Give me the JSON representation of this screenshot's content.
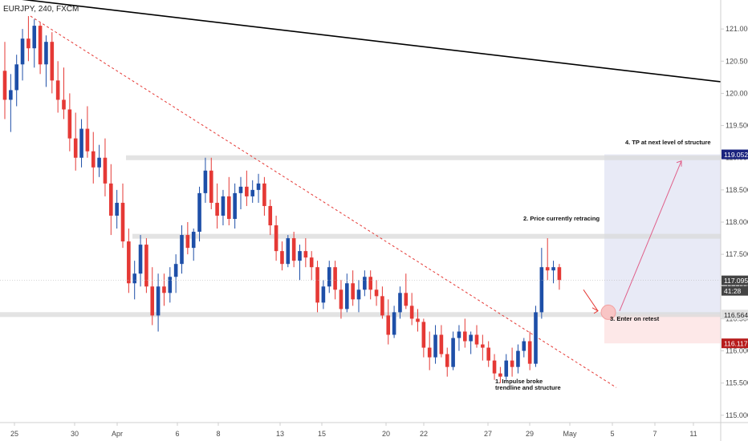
{
  "header": {
    "symbol": "EURJPY, 240, FXCM"
  },
  "chart_data": {
    "type": "candlestick",
    "title": "EURJPY, 240, FXCM",
    "ylim": [
      114.6,
      121.45
    ],
    "y_ticks": [
      "121.000",
      "120.500",
      "120.000",
      "119.500",
      "119.000",
      "118.500",
      "118.000",
      "117.500",
      "117.000",
      "116.500",
      "116.000",
      "115.500",
      "115.000"
    ],
    "x_ticks": [
      "25",
      "30",
      "Apr",
      "6",
      "8",
      "13",
      "15",
      "20",
      "22",
      "27",
      "29",
      "May",
      "5",
      "7",
      "11"
    ],
    "grid": false,
    "price_tags": [
      {
        "value": "119.052",
        "color": "#1a237e"
      },
      {
        "value": "117.095",
        "color": "#444444"
      },
      {
        "value": "41:28",
        "color": "#444444"
      },
      {
        "value": "116.564",
        "color": "#e0e0e0"
      },
      {
        "value": "116.117",
        "color": "#b71c1c"
      }
    ],
    "annotations": [
      "1. Impulse broke",
      "trendline and structure",
      "2. Price currently retracing",
      "3. Enter on retest",
      "4. TP at next level of structure"
    ],
    "zones": [
      {
        "name": "target",
        "from": 116.564,
        "to": 119.052,
        "color": "#e8eaf6"
      },
      {
        "name": "stop",
        "from": 116.117,
        "to": 116.564,
        "color": "#fde8e8"
      }
    ],
    "levels": [
      119.0,
      117.78,
      116.564
    ],
    "colors": {
      "bull": "#1e4fa8",
      "bear": "#e53935",
      "trend": "#000000",
      "dashed": "#e53935"
    },
    "candles": [
      {
        "o": 120.35,
        "h": 120.8,
        "l": 119.6,
        "c": 119.9
      },
      {
        "o": 119.9,
        "h": 120.3,
        "l": 119.4,
        "c": 120.05
      },
      {
        "o": 120.05,
        "h": 120.6,
        "l": 119.8,
        "c": 120.45
      },
      {
        "o": 120.45,
        "h": 121.0,
        "l": 120.2,
        "c": 120.85
      },
      {
        "o": 120.85,
        "h": 121.2,
        "l": 120.5,
        "c": 120.7
      },
      {
        "o": 120.7,
        "h": 121.15,
        "l": 120.4,
        "c": 121.05
      },
      {
        "o": 121.05,
        "h": 121.1,
        "l": 120.3,
        "c": 120.45
      },
      {
        "o": 120.45,
        "h": 120.9,
        "l": 120.1,
        "c": 120.8
      },
      {
        "o": 120.8,
        "h": 120.95,
        "l": 120.0,
        "c": 120.2
      },
      {
        "o": 120.2,
        "h": 120.5,
        "l": 119.7,
        "c": 119.9
      },
      {
        "o": 119.9,
        "h": 120.4,
        "l": 119.6,
        "c": 119.75
      },
      {
        "o": 119.75,
        "h": 120.0,
        "l": 119.1,
        "c": 119.3
      },
      {
        "o": 119.3,
        "h": 119.7,
        "l": 118.8,
        "c": 119.0
      },
      {
        "o": 119.0,
        "h": 119.6,
        "l": 118.85,
        "c": 119.45
      },
      {
        "o": 119.45,
        "h": 119.8,
        "l": 119.0,
        "c": 119.1
      },
      {
        "o": 119.1,
        "h": 119.4,
        "l": 118.6,
        "c": 118.85
      },
      {
        "o": 118.85,
        "h": 119.2,
        "l": 118.7,
        "c": 119.0
      },
      {
        "o": 119.0,
        "h": 119.3,
        "l": 118.4,
        "c": 118.6
      },
      {
        "o": 118.6,
        "h": 118.9,
        "l": 117.8,
        "c": 118.1
      },
      {
        "o": 118.1,
        "h": 118.5,
        "l": 117.9,
        "c": 118.3
      },
      {
        "o": 118.3,
        "h": 118.6,
        "l": 117.6,
        "c": 117.7
      },
      {
        "o": 117.7,
        "h": 117.9,
        "l": 116.9,
        "c": 117.05
      },
      {
        "o": 117.05,
        "h": 117.4,
        "l": 116.8,
        "c": 117.2
      },
      {
        "o": 117.2,
        "h": 117.8,
        "l": 117.0,
        "c": 117.65
      },
      {
        "o": 117.65,
        "h": 117.75,
        "l": 116.9,
        "c": 117.0
      },
      {
        "o": 117.0,
        "h": 117.3,
        "l": 116.4,
        "c": 116.55
      },
      {
        "o": 116.55,
        "h": 117.2,
        "l": 116.3,
        "c": 117.0
      },
      {
        "o": 117.0,
        "h": 117.2,
        "l": 116.7,
        "c": 116.9
      },
      {
        "o": 116.9,
        "h": 117.3,
        "l": 116.75,
        "c": 117.15
      },
      {
        "o": 117.15,
        "h": 117.5,
        "l": 116.9,
        "c": 117.35
      },
      {
        "o": 117.35,
        "h": 117.95,
        "l": 117.2,
        "c": 117.8
      },
      {
        "o": 117.8,
        "h": 118.0,
        "l": 117.5,
        "c": 117.6
      },
      {
        "o": 117.6,
        "h": 117.9,
        "l": 117.4,
        "c": 117.85
      },
      {
        "o": 117.85,
        "h": 118.55,
        "l": 117.7,
        "c": 118.45
      },
      {
        "o": 118.45,
        "h": 119.0,
        "l": 118.3,
        "c": 118.8
      },
      {
        "o": 118.8,
        "h": 119.0,
        "l": 118.2,
        "c": 118.3
      },
      {
        "o": 118.3,
        "h": 118.6,
        "l": 117.9,
        "c": 118.1
      },
      {
        "o": 118.1,
        "h": 118.5,
        "l": 117.95,
        "c": 118.4
      },
      {
        "o": 118.4,
        "h": 118.7,
        "l": 117.95,
        "c": 118.05
      },
      {
        "o": 118.05,
        "h": 118.6,
        "l": 117.9,
        "c": 118.45
      },
      {
        "o": 118.45,
        "h": 118.7,
        "l": 118.2,
        "c": 118.55
      },
      {
        "o": 118.55,
        "h": 118.8,
        "l": 118.25,
        "c": 118.4
      },
      {
        "o": 118.4,
        "h": 118.65,
        "l": 118.3,
        "c": 118.5
      },
      {
        "o": 118.5,
        "h": 118.75,
        "l": 118.3,
        "c": 118.6
      },
      {
        "o": 118.6,
        "h": 118.7,
        "l": 118.1,
        "c": 118.25
      },
      {
        "o": 118.25,
        "h": 118.35,
        "l": 117.8,
        "c": 117.95
      },
      {
        "o": 117.95,
        "h": 118.1,
        "l": 117.4,
        "c": 117.55
      },
      {
        "o": 117.55,
        "h": 117.7,
        "l": 117.25,
        "c": 117.35
      },
      {
        "o": 117.35,
        "h": 117.8,
        "l": 117.3,
        "c": 117.75
      },
      {
        "o": 117.75,
        "h": 117.85,
        "l": 117.3,
        "c": 117.4
      },
      {
        "o": 117.4,
        "h": 117.65,
        "l": 117.1,
        "c": 117.55
      },
      {
        "o": 117.55,
        "h": 117.75,
        "l": 117.3,
        "c": 117.45
      },
      {
        "o": 117.45,
        "h": 117.55,
        "l": 117.1,
        "c": 117.3
      },
      {
        "o": 117.3,
        "h": 117.4,
        "l": 116.6,
        "c": 116.75
      },
      {
        "o": 116.75,
        "h": 117.1,
        "l": 116.65,
        "c": 117.0
      },
      {
        "o": 117.0,
        "h": 117.4,
        "l": 116.9,
        "c": 117.3
      },
      {
        "o": 117.3,
        "h": 117.4,
        "l": 116.8,
        "c": 116.95
      },
      {
        "o": 116.95,
        "h": 117.1,
        "l": 116.5,
        "c": 116.65
      },
      {
        "o": 116.65,
        "h": 117.2,
        "l": 116.6,
        "c": 117.05
      },
      {
        "o": 117.05,
        "h": 117.25,
        "l": 116.7,
        "c": 116.8
      },
      {
        "o": 116.8,
        "h": 117.1,
        "l": 116.6,
        "c": 116.95
      },
      {
        "o": 116.95,
        "h": 117.25,
        "l": 116.85,
        "c": 117.15
      },
      {
        "o": 117.15,
        "h": 117.25,
        "l": 116.8,
        "c": 116.95
      },
      {
        "o": 116.95,
        "h": 117.1,
        "l": 116.7,
        "c": 116.85
      },
      {
        "o": 116.85,
        "h": 117.0,
        "l": 116.5,
        "c": 116.55
      },
      {
        "o": 116.55,
        "h": 116.8,
        "l": 116.1,
        "c": 116.25
      },
      {
        "o": 116.25,
        "h": 116.7,
        "l": 116.2,
        "c": 116.6
      },
      {
        "o": 116.6,
        "h": 117.0,
        "l": 116.5,
        "c": 116.9
      },
      {
        "o": 116.9,
        "h": 117.2,
        "l": 116.65,
        "c": 116.7
      },
      {
        "o": 116.7,
        "h": 116.9,
        "l": 116.4,
        "c": 116.5
      },
      {
        "o": 116.5,
        "h": 116.65,
        "l": 116.3,
        "c": 116.45
      },
      {
        "o": 116.45,
        "h": 116.5,
        "l": 115.9,
        "c": 116.05
      },
      {
        "o": 116.05,
        "h": 116.3,
        "l": 115.7,
        "c": 115.9
      },
      {
        "o": 115.9,
        "h": 116.4,
        "l": 115.8,
        "c": 116.25
      },
      {
        "o": 116.25,
        "h": 116.4,
        "l": 115.9,
        "c": 115.95
      },
      {
        "o": 115.95,
        "h": 116.05,
        "l": 115.6,
        "c": 115.75
      },
      {
        "o": 115.75,
        "h": 116.3,
        "l": 115.7,
        "c": 116.2
      },
      {
        "o": 116.2,
        "h": 116.4,
        "l": 116.0,
        "c": 116.3
      },
      {
        "o": 116.3,
        "h": 116.5,
        "l": 116.05,
        "c": 116.15
      },
      {
        "o": 116.15,
        "h": 116.3,
        "l": 115.95,
        "c": 116.25
      },
      {
        "o": 116.25,
        "h": 116.4,
        "l": 116.05,
        "c": 116.1
      },
      {
        "o": 116.1,
        "h": 116.25,
        "l": 115.85,
        "c": 116.05
      },
      {
        "o": 116.05,
        "h": 116.15,
        "l": 115.75,
        "c": 115.85
      },
      {
        "o": 115.85,
        "h": 115.95,
        "l": 115.55,
        "c": 115.65
      },
      {
        "o": 115.65,
        "h": 115.75,
        "l": 115.5,
        "c": 115.6
      },
      {
        "o": 115.6,
        "h": 115.95,
        "l": 115.55,
        "c": 115.85
      },
      {
        "o": 115.85,
        "h": 116.05,
        "l": 115.6,
        "c": 115.75
      },
      {
        "o": 115.75,
        "h": 116.1,
        "l": 115.65,
        "c": 116.0
      },
      {
        "o": 116.0,
        "h": 116.2,
        "l": 115.9,
        "c": 116.15
      },
      {
        "o": 116.15,
        "h": 116.3,
        "l": 115.7,
        "c": 115.8
      },
      {
        "o": 115.8,
        "h": 116.7,
        "l": 115.75,
        "c": 116.6
      },
      {
        "o": 116.6,
        "h": 117.6,
        "l": 116.5,
        "c": 117.3
      },
      {
        "o": 117.3,
        "h": 117.75,
        "l": 117.1,
        "c": 117.25
      },
      {
        "o": 117.25,
        "h": 117.4,
        "l": 117.05,
        "c": 117.3
      },
      {
        "o": 117.3,
        "h": 117.35,
        "l": 116.95,
        "c": 117.1
      }
    ]
  }
}
